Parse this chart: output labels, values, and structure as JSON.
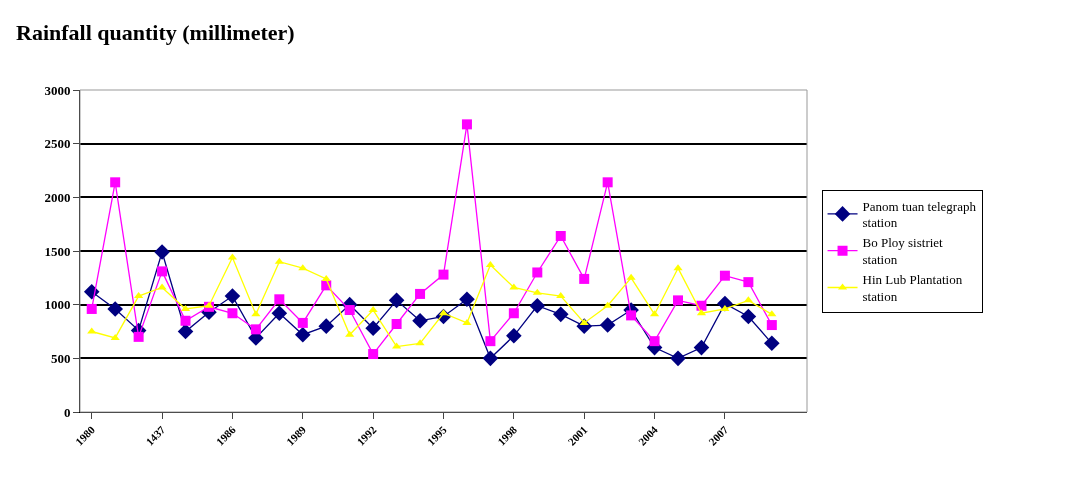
{
  "chart_data": {
    "type": "line",
    "title": "Rainfall quantity (millimeter)",
    "categories": [
      "1980",
      null,
      null,
      "1437",
      null,
      null,
      "1986",
      null,
      null,
      "1989",
      null,
      null,
      "1992",
      null,
      null,
      "1995",
      null,
      null,
      "1998",
      null,
      null,
      "2001",
      null,
      null,
      "2004",
      null,
      null,
      "2007",
      null,
      null
    ],
    "series": [
      {
        "name": "Panom tuan telegraph station",
        "color": "#000080",
        "marker": "diamond",
        "values": [
          1120,
          960,
          760,
          1490,
          750,
          930,
          1080,
          690,
          920,
          720,
          800,
          1000,
          780,
          1040,
          850,
          890,
          1050,
          500,
          710,
          990,
          910,
          800,
          810,
          950,
          600,
          500,
          600,
          1010,
          890,
          640
        ]
      },
      {
        "name": "Bo Ploy sistriet station",
        "color": "#ff00ff",
        "marker": "square",
        "values": [
          960,
          2140,
          700,
          1310,
          850,
          980,
          920,
          770,
          1050,
          830,
          1180,
          950,
          540,
          820,
          1100,
          1280,
          2680,
          660,
          920,
          1300,
          1640,
          1240,
          2140,
          900,
          660,
          1040,
          990,
          1270,
          1210,
          810
        ]
      },
      {
        "name": "Hin Lub Plantation station",
        "color": "#ffff00",
        "marker": "triangle",
        "values": [
          750,
          690,
          1080,
          1160,
          960,
          990,
          1440,
          910,
          1400,
          1340,
          1240,
          720,
          950,
          610,
          640,
          920,
          830,
          1370,
          1160,
          1110,
          1080,
          830,
          990,
          1250,
          910,
          1340,
          920,
          960,
          1040,
          910
        ]
      }
    ],
    "ylim": [
      0,
      3000
    ],
    "yticks": [
      0,
      500,
      1000,
      1500,
      2000,
      2500,
      3000
    ],
    "grid": "y",
    "legend": "right",
    "line_style": "solid"
  }
}
